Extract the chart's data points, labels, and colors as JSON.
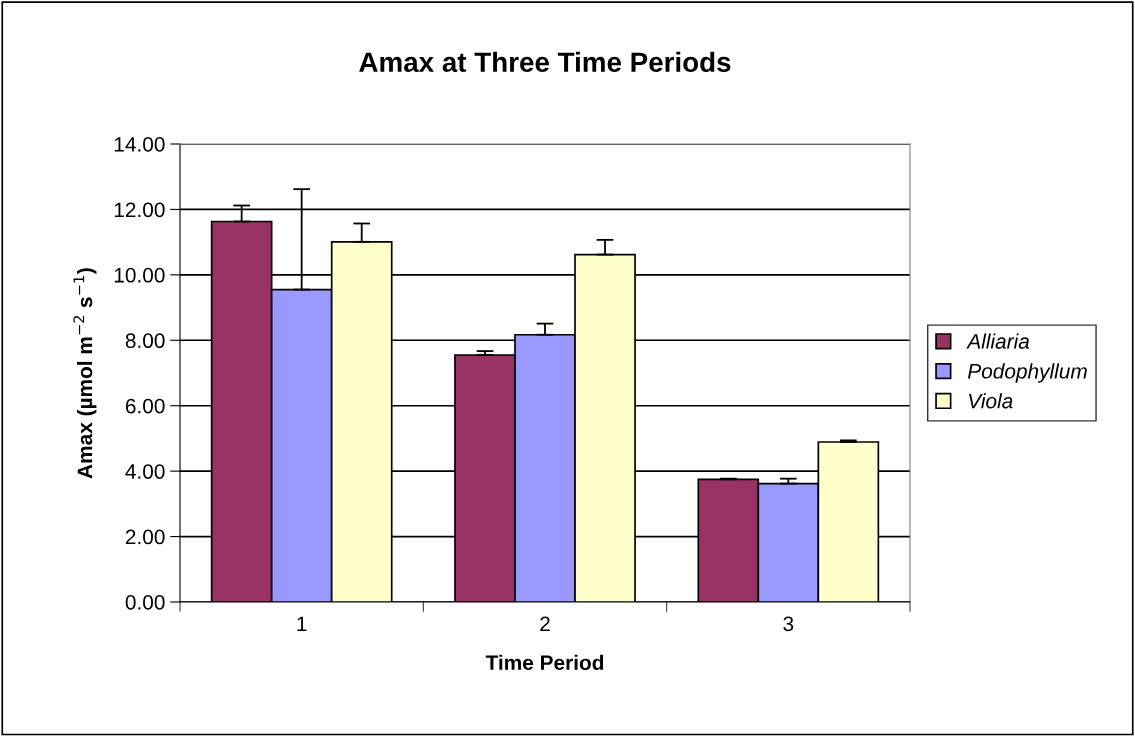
{
  "chart_data": {
    "type": "bar",
    "title": "Amax at Three Time Periods",
    "xlabel": "Time Period",
    "ylabel": "Amax (µmol m$^{−2}$ s$^{−1}$)",
    "categories": [
      "1",
      "2",
      "3"
    ],
    "series": [
      {
        "name": "Alliaria",
        "color": "#993366",
        "values": [
          11.63,
          7.55,
          3.75
        ],
        "errors": [
          [
            11.63,
            12.12
          ],
          [
            7.55,
            7.67
          ],
          [
            3.75,
            3.77
          ]
        ]
      },
      {
        "name": "Podophyllum",
        "color": "#9999ff",
        "values": [
          9.55,
          8.17,
          3.62
        ],
        "errors": [
          [
            9.55,
            12.62
          ],
          [
            8.17,
            8.51
          ],
          [
            3.62,
            3.77
          ]
        ]
      },
      {
        "name": "Viola",
        "color": "#ffffcc",
        "values": [
          11.01,
          10.62,
          4.89
        ],
        "errors": [
          [
            11.01,
            11.57
          ],
          [
            10.62,
            11.07
          ],
          [
            4.89,
            4.94
          ]
        ]
      }
    ],
    "ylim": [
      0,
      14
    ],
    "yticks": [
      {
        "value": 0,
        "label": "0.00"
      },
      {
        "value": 2,
        "label": "2.00"
      },
      {
        "value": 4,
        "label": "4.00"
      },
      {
        "value": 6,
        "label": "6.00"
      },
      {
        "value": 8,
        "label": "8.00"
      },
      {
        "value": 10,
        "label": "10.00"
      },
      {
        "value": 12,
        "label": "12.00"
      },
      {
        "value": 14,
        "label": "14.00"
      }
    ],
    "grid": "y",
    "legend": "right"
  }
}
